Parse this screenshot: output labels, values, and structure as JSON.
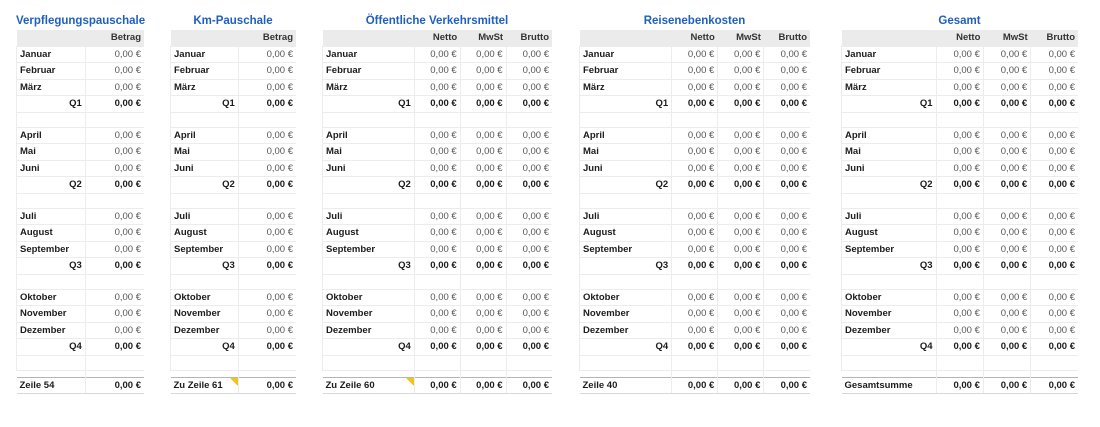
{
  "colors": {
    "title": "#1f5fbf",
    "header_bg": "#ebebeb",
    "note_marker": "#f0c419"
  },
  "months": [
    [
      "Januar",
      "Februar",
      "März"
    ],
    [
      "April",
      "Mai",
      "Juni"
    ],
    [
      "Juli",
      "August",
      "September"
    ],
    [
      "Oktober",
      "November",
      "Dezember"
    ]
  ],
  "quarters": [
    "Q1",
    "Q2",
    "Q3",
    "Q4"
  ],
  "zero_value": "0,00 €",
  "sheets": [
    {
      "id": "verpflegung",
      "title": "Verpflegungspauschale",
      "columns": [
        "Betrag"
      ],
      "total_label": "Zeile 54",
      "total_note": false
    },
    {
      "id": "km",
      "title": "Km-Pauschale",
      "columns": [
        "Betrag"
      ],
      "total_label": "Zu Zeile 61",
      "total_note": true
    },
    {
      "id": "oepnv",
      "title": "Öffentliche Verkehrsmittel",
      "columns": [
        "Netto",
        "MwSt",
        "Brutto"
      ],
      "total_label": "Zu Zeile 60",
      "total_note": true
    },
    {
      "id": "reise",
      "title": "Reisenebenkosten",
      "columns": [
        "Netto",
        "MwSt",
        "Brutto"
      ],
      "total_label": "Zeile 40",
      "total_note": false
    },
    {
      "id": "gesamt",
      "title": "Gesamt",
      "columns": [
        "Netto",
        "MwSt",
        "Brutto"
      ],
      "total_label": "Gesamtsumme",
      "total_note": false
    }
  ]
}
